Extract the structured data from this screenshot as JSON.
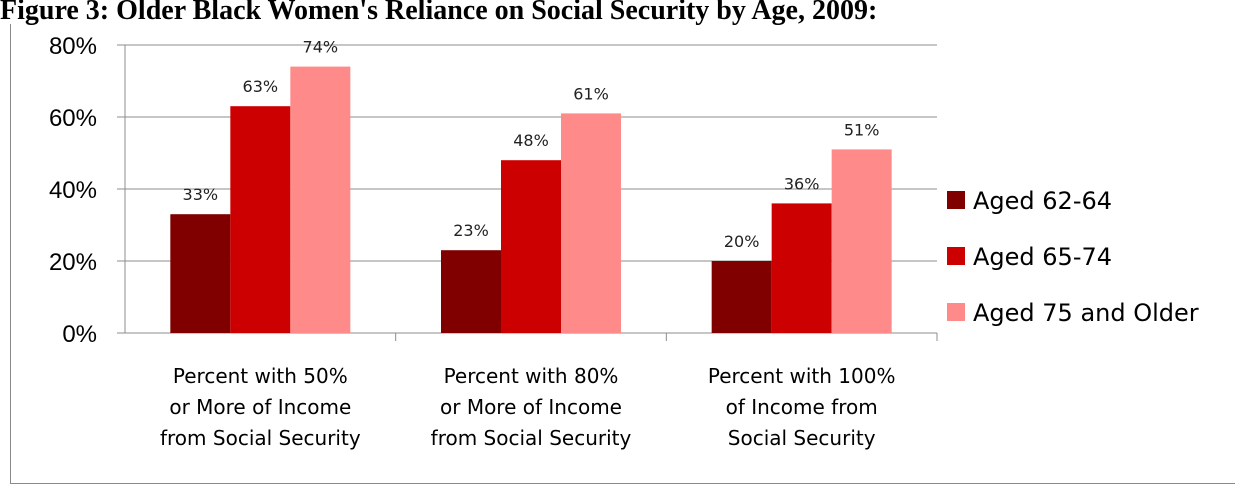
{
  "title": "Figure 3: Older Black Women's Reliance on Social Security by Age, 2009:",
  "chart_data": {
    "type": "bar",
    "title": "Figure 3: Older Black Women's Reliance on Social Security by Age, 2009:",
    "categories": [
      [
        "Percent with 50%",
        "or More of Income",
        "from Social Security"
      ],
      [
        "Percent with 80%",
        "or More of Income",
        "from Social Security"
      ],
      [
        "Percent with 100%",
        "of Income from",
        "Social Security"
      ]
    ],
    "series": [
      {
        "name": "Aged 62-64",
        "values": [
          33,
          23,
          20
        ],
        "labels": [
          "33%",
          "23%",
          "20%"
        ],
        "color": "#800000"
      },
      {
        "name": "Aged 65-74",
        "values": [
          63,
          48,
          36
        ],
        "labels": [
          "63%",
          "48%",
          "36%"
        ],
        "color": "#cc0000"
      },
      {
        "name": "Aged 75 and Older",
        "values": [
          74,
          61,
          51
        ],
        "labels": [
          "74%",
          "61%",
          "51%"
        ],
        "color": "#ff8a8a"
      }
    ],
    "yticks": [
      "0%",
      "20%",
      "40%",
      "60%",
      "80%"
    ],
    "ylim": [
      0,
      80
    ],
    "grid": true,
    "legend_position": "right"
  }
}
